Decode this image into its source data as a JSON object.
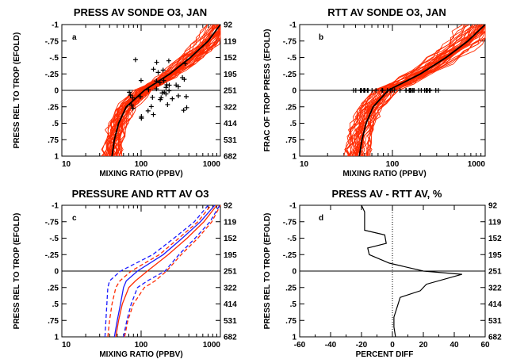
{
  "colors": {
    "red": "#ff2a00",
    "blue": "#1a1aff",
    "black": "#000000"
  },
  "chart_data": [
    {
      "type": "line",
      "panel_letter": "a",
      "title": "PRESS AV SONDE O3, JAN",
      "xlabel": "MIXING RATIO (PPBV)",
      "ylabel": "PRESS REL TO TROP (EFOLD)",
      "xscale": "log",
      "xlim": [
        10,
        1000
      ],
      "ylim": [
        1,
        -1
      ],
      "yticks": [
        -1,
        -0.75,
        -0.5,
        -0.25,
        0,
        0.25,
        0.5,
        0.75,
        1
      ],
      "ytick_labels": [
        "-1",
        "-.75",
        "-.5",
        "-.25",
        "0",
        ".25",
        ".5",
        ".75",
        "1"
      ],
      "right_ticks": [
        "92",
        "119",
        "152",
        "195",
        "251",
        "322",
        "414",
        "531",
        "682"
      ],
      "xtick_labels": [
        "10",
        "100",
        "1000"
      ],
      "mean_profile": {
        "y": [
          1,
          0.75,
          0.5,
          0.25,
          0,
          -0.25,
          -0.5,
          -0.75,
          -1
        ],
        "x": [
          43,
          46,
          52,
          65,
          110,
          230,
          420,
          700,
          1000
        ]
      },
      "sonde_profiles_count": 40,
      "tropopause_markers": {
        "count": 45,
        "y_range": [
          -0.5,
          0.45
        ],
        "x_range": [
          70,
          400
        ]
      },
      "grid": false,
      "legend": "none"
    },
    {
      "type": "line",
      "panel_letter": "b",
      "title": "RTT AV SONDE O3, JAN",
      "xlabel": "MIXING RATIO (PPBV)",
      "ylabel": "FRAC OF TROP PRESS (EFOLD)",
      "xscale": "log",
      "xlim": [
        10,
        1000
      ],
      "ylim": [
        1,
        -1
      ],
      "ytick_labels": [
        "-1",
        "-.75",
        "-.5",
        "-.25",
        "0",
        ".25",
        ".5",
        ".75",
        "1"
      ],
      "xtick_labels": [
        "10",
        "100",
        "1000"
      ],
      "mean_profile": {
        "y": [
          1,
          0.75,
          0.5,
          0.25,
          0,
          -0.25,
          -0.5,
          -0.75,
          -1
        ],
        "x": [
          44,
          47,
          52,
          62,
          90,
          200,
          380,
          650,
          1000
        ]
      },
      "sonde_profiles_count": 40,
      "tropopause_markers": {
        "count": 40,
        "y": 0,
        "x_range": [
          38,
          320
        ]
      },
      "grid": false,
      "legend": "none"
    },
    {
      "type": "line",
      "panel_letter": "c",
      "title": "PRESSURE AND RTT AV O3",
      "xlabel": "MIXING RATIO (PPBV)",
      "ylabel": "PRESS REL TO TROP (EFOLD)",
      "xscale": "log",
      "xlim": [
        10,
        1000
      ],
      "ylim": [
        1,
        -1
      ],
      "ytick_labels": [
        "-1",
        "-.75",
        "-.5",
        "-.25",
        "0",
        ".25",
        ".5",
        ".75",
        "1"
      ],
      "right_ticks": [
        "92",
        "119",
        "152",
        "195",
        "251",
        "322",
        "414",
        "531",
        "682"
      ],
      "xtick_labels": [
        "10",
        "100",
        "1000"
      ],
      "y": [
        1,
        0.75,
        0.5,
        0.25,
        0.15,
        0,
        -0.25,
        -0.5,
        -0.75,
        -1
      ],
      "series": [
        {
          "color": "red",
          "dash": false,
          "x": [
            48,
            52,
            58,
            70,
            85,
            120,
            220,
            380,
            620,
            900
          ]
        },
        {
          "color": "red",
          "dash": true,
          "x": [
            38,
            40,
            43,
            48,
            54,
            75,
            170,
            300,
            520,
            760
          ]
        },
        {
          "color": "red",
          "dash": true,
          "x": [
            62,
            68,
            80,
            110,
            150,
            210,
            320,
            520,
            780,
            1000
          ]
        },
        {
          "color": "blue",
          "dash": false,
          "x": [
            46,
            50,
            55,
            60,
            65,
            90,
            190,
            330,
            560,
            850
          ]
        },
        {
          "color": "blue",
          "dash": true,
          "x": [
            35,
            36,
            37,
            38,
            40,
            55,
            140,
            260,
            470,
            700
          ]
        },
        {
          "color": "blue",
          "dash": true,
          "x": [
            60,
            66,
            75,
            90,
            120,
            200,
            300,
            480,
            740,
            980
          ]
        }
      ],
      "grid": false,
      "legend": "none"
    },
    {
      "type": "line",
      "panel_letter": "d",
      "title": "PRESS AV - RTT AV, %",
      "xlabel": "PERCENT DIFF",
      "ylabel": "PRESS REL TO TROP (EFOLD)",
      "xlim": [
        -60,
        60
      ],
      "xticks": [
        -60,
        -40,
        -20,
        0,
        20,
        40,
        60
      ],
      "xtick_labels": [
        "-60",
        "-40",
        "-20",
        "0",
        "20",
        "40",
        "60"
      ],
      "ylim": [
        1,
        -1
      ],
      "ytick_labels": [
        "-1",
        "-.75",
        "-.5",
        "-.25",
        "0",
        ".25",
        ".5",
        ".75",
        "1"
      ],
      "right_ticks": [
        "92",
        "119",
        "152",
        "195",
        "251",
        "322",
        "414",
        "531",
        "682"
      ],
      "series": [
        {
          "x": [
            -20,
            -18,
            -18,
            -5,
            -4,
            -16,
            -15,
            -2,
            20,
            45,
            22,
            18,
            5,
            3,
            1,
            1,
            2
          ],
          "y": [
            -1,
            -0.9,
            -0.62,
            -0.55,
            -0.42,
            -0.35,
            -0.25,
            -0.12,
            0,
            0.05,
            0.2,
            0.3,
            0.4,
            0.55,
            0.7,
            0.85,
            1
          ]
        }
      ],
      "zero_line": "dotted vertical at 0",
      "grid": false,
      "legend": "none"
    }
  ]
}
